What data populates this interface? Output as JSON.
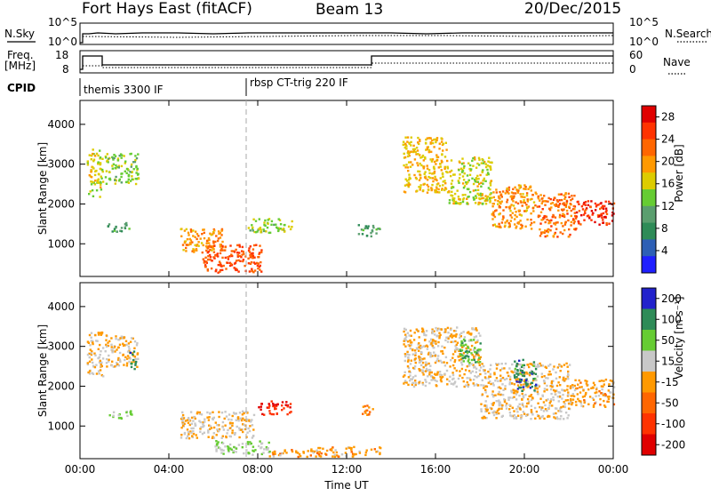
{
  "header": {
    "station": "Fort Hays East (fitACF)",
    "beam": "Beam 13",
    "date": "20/Dec/2015"
  },
  "noise_panel": {
    "left_label": "N.Sky",
    "right_label": "N.Search",
    "ticks_left": [
      "10^5",
      "10^0"
    ],
    "ticks_right": [
      "10^5",
      "10^0"
    ]
  },
  "freq_panel": {
    "left_label_line1": "Freq.",
    "left_label_line2": "[MHz]",
    "right_label": "Nave",
    "ticks_left": [
      "18",
      "8"
    ],
    "ticks_right": [
      "60",
      "0"
    ]
  },
  "cpid_panel": {
    "label": "CPID",
    "segments": [
      {
        "name": "themis 3300 IF",
        "start_hour": 0
      },
      {
        "name": "rbsp CT-trig 220 IF",
        "start_hour": 7.4
      }
    ]
  },
  "colors": {
    "power_scale": [
      "#1f1fff",
      "#2d5fb5",
      "#2e8b57",
      "#5a9e6e",
      "#66cc33",
      "#ddcc00",
      "#ff9900",
      "#ff6600",
      "#ff3300",
      "#e00000"
    ],
    "velocity_scale": [
      "#2222cc",
      "#2e8b57",
      "#66cc33",
      "#c8c8c8",
      "#ff9900",
      "#ff6600",
      "#ff3300",
      "#e00000"
    ]
  },
  "chart_data": [
    {
      "type": "heatmap",
      "title": "",
      "xlabel": "Time UT",
      "ylabel": "Slant Range [km]",
      "xlim": [
        0,
        24
      ],
      "ylim": [
        180,
        4600
      ],
      "xticks": [
        "00:00",
        "04:00",
        "08:00",
        "12:00",
        "16:00",
        "20:00",
        "00:00"
      ],
      "yticks": [
        "1000",
        "2000",
        "3000",
        "4000"
      ],
      "colorbar": {
        "label": "Power [dB]",
        "ticks": [
          "4",
          "8",
          "12",
          "16",
          "20",
          "24",
          "28"
        ],
        "range": [
          0,
          30
        ]
      },
      "regions": [
        {
          "t0": 0.3,
          "t1": 1.0,
          "r0": 2200,
          "r1": 3400,
          "value": 16
        },
        {
          "t0": 1.1,
          "t1": 2.6,
          "r0": 2500,
          "r1": 3300,
          "value": 14
        },
        {
          "t0": 1.2,
          "t1": 2.2,
          "r0": 1300,
          "r1": 1550,
          "value": 10
        },
        {
          "t0": 4.5,
          "t1": 6.5,
          "r0": 800,
          "r1": 1400,
          "value": 20
        },
        {
          "t0": 5.5,
          "t1": 8.2,
          "r0": 300,
          "r1": 1000,
          "value": 24
        },
        {
          "t0": 7.5,
          "t1": 9.5,
          "r0": 1300,
          "r1": 1650,
          "value": 14
        },
        {
          "t0": 12.5,
          "t1": 13.5,
          "r0": 1200,
          "r1": 1500,
          "value": 10
        },
        {
          "t0": 14.5,
          "t1": 16.5,
          "r0": 2300,
          "r1": 3700,
          "value": 18
        },
        {
          "t0": 16.5,
          "t1": 18.5,
          "r0": 2000,
          "r1": 3200,
          "value": 16
        },
        {
          "t0": 18.5,
          "t1": 20.5,
          "r0": 1400,
          "r1": 2500,
          "value": 20
        },
        {
          "t0": 20.5,
          "t1": 22.3,
          "r0": 1200,
          "r1": 2300,
          "value": 22
        },
        {
          "t0": 22.3,
          "t1": 24.0,
          "r0": 1500,
          "r1": 2100,
          "value": 26
        }
      ]
    },
    {
      "type": "heatmap",
      "title": "",
      "xlabel": "Time UT",
      "ylabel": "Slant Range [km]",
      "xlim": [
        0,
        24
      ],
      "ylim": [
        180,
        4600
      ],
      "xticks": [
        "00:00",
        "04:00",
        "08:00",
        "12:00",
        "16:00",
        "20:00",
        "00:00"
      ],
      "yticks": [
        "1000",
        "2000",
        "3000",
        "4000"
      ],
      "colorbar": {
        "label": "Velocity [m s⁻¹]",
        "ticks": [
          "200",
          "100",
          "50",
          "15",
          "-15",
          "-50",
          "-100",
          "-200"
        ],
        "range": [
          -250,
          250
        ]
      },
      "regions": [
        {
          "t0": 0.3,
          "t1": 1.0,
          "r0": 2200,
          "r1": 3400,
          "value": 0
        },
        {
          "t0": 1.1,
          "t1": 2.6,
          "r0": 2500,
          "r1": 3300,
          "value": 0
        },
        {
          "t0": 2.2,
          "t1": 2.5,
          "r0": 2400,
          "r1": 2900,
          "value": 150
        },
        {
          "t0": 1.2,
          "t1": 2.3,
          "r0": 1200,
          "r1": 1400,
          "value": 70
        },
        {
          "t0": 4.5,
          "t1": 7.8,
          "r0": 700,
          "r1": 1400,
          "value": 0
        },
        {
          "t0": 6.0,
          "t1": 8.5,
          "r0": 300,
          "r1": 650,
          "value": 60
        },
        {
          "t0": 8.5,
          "t1": 10.5,
          "r0": 250,
          "r1": 450,
          "value": -40
        },
        {
          "t0": 10.5,
          "t1": 13.5,
          "r0": 250,
          "r1": 500,
          "value": -30
        },
        {
          "t0": 8.0,
          "t1": 9.5,
          "r0": 1300,
          "r1": 1650,
          "value": -180
        },
        {
          "t0": 12.5,
          "t1": 13.2,
          "r0": 1300,
          "r1": 1550,
          "value": -70
        },
        {
          "t0": 14.5,
          "t1": 18.0,
          "r0": 2000,
          "r1": 3500,
          "value": 0
        },
        {
          "t0": 17.0,
          "t1": 18.0,
          "r0": 2600,
          "r1": 3200,
          "value": 120
        },
        {
          "t0": 18.0,
          "t1": 22.0,
          "r0": 1200,
          "r1": 2600,
          "value": 0
        },
        {
          "t0": 19.5,
          "t1": 20.5,
          "r0": 1900,
          "r1": 2700,
          "value": 160
        },
        {
          "t0": 22.0,
          "t1": 24.0,
          "r0": 1500,
          "r1": 2200,
          "value": -30
        }
      ]
    }
  ]
}
